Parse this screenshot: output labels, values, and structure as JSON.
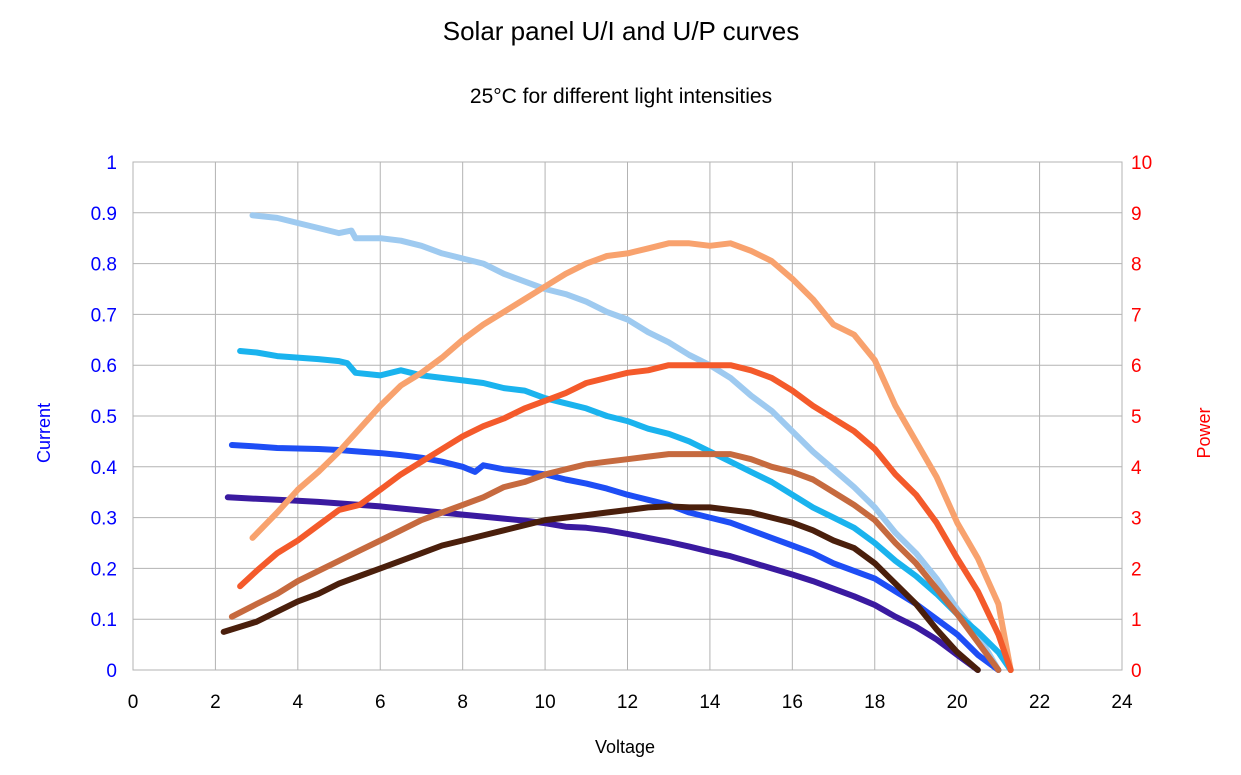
{
  "chart_data": {
    "type": "line",
    "title": "Solar panel U/I and U/P curves",
    "subtitle": "25°C for different light intensities",
    "xlabel": "Voltage",
    "ylabel": "Current",
    "y2label": "Power",
    "xlim": [
      0,
      24
    ],
    "ylim": [
      0,
      1
    ],
    "y2lim": [
      0,
      10
    ],
    "xticks": [
      "0",
      "2",
      "4",
      "6",
      "8",
      "10",
      "12",
      "14",
      "16",
      "18",
      "20",
      "22",
      "24"
    ],
    "yticks": [
      "0",
      "0.1",
      "0.2",
      "0.3",
      "0.4",
      "0.5",
      "0.6",
      "0.7",
      "0.8",
      "0.9",
      "1"
    ],
    "y2ticks": [
      "0",
      "1",
      "2",
      "3",
      "4",
      "5",
      "6",
      "7",
      "8",
      "9",
      "10"
    ],
    "grid": true,
    "legend": "none",
    "colors": {
      "ylabel": "#0000ff",
      "y2label": "#ff0000",
      "grid": "#b3b3b3"
    },
    "series": [
      {
        "axis": "current",
        "color": "#9ecaf0",
        "x": [
          2.9,
          3.5,
          4.0,
          4.5,
          5.0,
          5.3,
          5.4,
          6.0,
          6.5,
          7.0,
          7.5,
          8.0,
          8.5,
          9.0,
          9.5,
          10.0,
          10.5,
          11.0,
          11.5,
          12.0,
          12.5,
          13.0,
          13.5,
          14.0,
          14.5,
          15.0,
          15.5,
          16.0,
          16.5,
          17.0,
          17.5,
          18.0,
          18.5,
          19.0,
          19.5,
          20.0,
          20.5,
          21.0
        ],
        "y": [
          0.895,
          0.89,
          0.88,
          0.87,
          0.86,
          0.865,
          0.85,
          0.85,
          0.845,
          0.835,
          0.82,
          0.81,
          0.8,
          0.78,
          0.765,
          0.75,
          0.74,
          0.725,
          0.705,
          0.69,
          0.665,
          0.645,
          0.62,
          0.6,
          0.575,
          0.54,
          0.51,
          0.47,
          0.43,
          0.395,
          0.36,
          0.32,
          0.27,
          0.23,
          0.18,
          0.12,
          0.07,
          0.0
        ]
      },
      {
        "axis": "current",
        "color": "#1ab3ee",
        "x": [
          2.6,
          3.0,
          3.5,
          4.0,
          4.5,
          5.0,
          5.2,
          5.4,
          6.0,
          6.5,
          7.0,
          7.5,
          8.0,
          8.5,
          9.0,
          9.5,
          10.0,
          10.5,
          11.0,
          11.5,
          12.0,
          12.5,
          13.0,
          13.5,
          14.0,
          14.5,
          15.0,
          15.5,
          16.0,
          16.5,
          17.0,
          17.5,
          18.0,
          18.5,
          19.0,
          19.5,
          20.0,
          20.5,
          21.0,
          21.3
        ],
        "y": [
          0.628,
          0.625,
          0.618,
          0.615,
          0.612,
          0.608,
          0.604,
          0.585,
          0.58,
          0.59,
          0.58,
          0.575,
          0.57,
          0.565,
          0.555,
          0.55,
          0.535,
          0.525,
          0.515,
          0.5,
          0.49,
          0.475,
          0.465,
          0.45,
          0.43,
          0.41,
          0.39,
          0.37,
          0.345,
          0.32,
          0.3,
          0.28,
          0.25,
          0.215,
          0.185,
          0.15,
          0.11,
          0.075,
          0.035,
          0.0
        ]
      },
      {
        "axis": "current",
        "color": "#1e4ef5",
        "x": [
          2.4,
          3.0,
          3.5,
          4.0,
          4.5,
          5.0,
          5.5,
          6.0,
          6.5,
          7.0,
          7.5,
          8.0,
          8.3,
          8.5,
          9.0,
          9.5,
          10.0,
          10.5,
          11.0,
          11.5,
          12.0,
          12.5,
          13.0,
          13.5,
          14.0,
          14.5,
          15.0,
          15.5,
          16.0,
          16.5,
          17.0,
          17.5,
          18.0,
          18.5,
          19.0,
          19.5,
          20.0,
          20.5,
          21.0
        ],
        "y": [
          0.443,
          0.44,
          0.437,
          0.436,
          0.435,
          0.433,
          0.43,
          0.427,
          0.423,
          0.418,
          0.41,
          0.4,
          0.39,
          0.403,
          0.395,
          0.39,
          0.385,
          0.375,
          0.367,
          0.357,
          0.345,
          0.335,
          0.325,
          0.31,
          0.3,
          0.29,
          0.275,
          0.26,
          0.245,
          0.23,
          0.21,
          0.195,
          0.18,
          0.155,
          0.13,
          0.1,
          0.07,
          0.03,
          0.0
        ]
      },
      {
        "axis": "current",
        "color": "#3a1aa0",
        "x": [
          2.3,
          3.0,
          3.5,
          4.0,
          4.5,
          5.0,
          5.5,
          6.0,
          6.5,
          7.0,
          7.5,
          8.0,
          8.5,
          9.0,
          9.5,
          10.0,
          10.5,
          11.0,
          11.5,
          12.0,
          12.5,
          13.0,
          13.5,
          14.0,
          14.5,
          15.0,
          15.5,
          16.0,
          16.5,
          17.0,
          17.5,
          18.0,
          18.5,
          19.0,
          19.5,
          20.0,
          20.5
        ],
        "y": [
          0.34,
          0.337,
          0.335,
          0.333,
          0.331,
          0.328,
          0.325,
          0.322,
          0.318,
          0.314,
          0.31,
          0.306,
          0.302,
          0.298,
          0.294,
          0.289,
          0.282,
          0.28,
          0.275,
          0.268,
          0.26,
          0.252,
          0.243,
          0.233,
          0.224,
          0.212,
          0.2,
          0.188,
          0.175,
          0.16,
          0.145,
          0.128,
          0.105,
          0.085,
          0.06,
          0.03,
          0.0
        ]
      },
      {
        "axis": "power",
        "color": "#f8a26e",
        "x": [
          2.9,
          3.5,
          4.0,
          4.5,
          5.0,
          5.5,
          6.0,
          6.5,
          7.0,
          7.5,
          8.0,
          8.5,
          9.0,
          9.5,
          10.0,
          10.5,
          11.0,
          11.5,
          12.0,
          12.5,
          13.0,
          13.5,
          14.0,
          14.5,
          15.0,
          15.5,
          16.0,
          16.5,
          17.0,
          17.5,
          18.0,
          18.5,
          19.0,
          19.5,
          20.0,
          20.5,
          21.0,
          21.3
        ],
        "y": [
          2.6,
          3.1,
          3.55,
          3.9,
          4.3,
          4.75,
          5.2,
          5.6,
          5.85,
          6.15,
          6.5,
          6.8,
          7.05,
          7.3,
          7.55,
          7.8,
          8.0,
          8.15,
          8.2,
          8.3,
          8.4,
          8.4,
          8.35,
          8.4,
          8.25,
          8.05,
          7.7,
          7.3,
          6.8,
          6.6,
          6.1,
          5.2,
          4.5,
          3.8,
          2.9,
          2.2,
          1.3,
          0.0
        ]
      },
      {
        "axis": "power",
        "color": "#f45a2b",
        "x": [
          2.6,
          3.0,
          3.5,
          4.0,
          4.5,
          5.0,
          5.5,
          6.0,
          6.5,
          7.0,
          7.5,
          8.0,
          8.5,
          9.0,
          9.5,
          10.0,
          10.5,
          11.0,
          11.5,
          12.0,
          12.5,
          13.0,
          13.5,
          14.0,
          14.5,
          15.0,
          15.5,
          16.0,
          16.5,
          17.0,
          17.5,
          18.0,
          18.5,
          19.0,
          19.5,
          20.0,
          20.5,
          21.0,
          21.3
        ],
        "y": [
          1.65,
          1.95,
          2.3,
          2.55,
          2.85,
          3.15,
          3.25,
          3.55,
          3.85,
          4.1,
          4.35,
          4.6,
          4.8,
          4.95,
          5.15,
          5.3,
          5.45,
          5.65,
          5.75,
          5.85,
          5.9,
          6.0,
          6.0,
          6.0,
          6.0,
          5.9,
          5.75,
          5.5,
          5.2,
          4.95,
          4.7,
          4.35,
          3.85,
          3.45,
          2.9,
          2.2,
          1.55,
          0.7,
          0.0
        ]
      },
      {
        "axis": "power",
        "color": "#c66a3f",
        "x": [
          2.4,
          3.0,
          3.5,
          4.0,
          4.5,
          5.0,
          5.5,
          6.0,
          6.5,
          7.0,
          7.5,
          8.0,
          8.5,
          9.0,
          9.5,
          10.0,
          10.5,
          11.0,
          11.5,
          12.0,
          12.5,
          13.0,
          13.5,
          14.0,
          14.5,
          15.0,
          15.5,
          16.0,
          16.5,
          17.0,
          17.5,
          18.0,
          18.5,
          19.0,
          19.5,
          20.0,
          20.5,
          21.0
        ],
        "y": [
          1.05,
          1.3,
          1.5,
          1.75,
          1.95,
          2.15,
          2.35,
          2.55,
          2.75,
          2.95,
          3.1,
          3.25,
          3.4,
          3.6,
          3.7,
          3.85,
          3.95,
          4.05,
          4.1,
          4.15,
          4.2,
          4.25,
          4.25,
          4.25,
          4.25,
          4.15,
          4.0,
          3.9,
          3.75,
          3.5,
          3.25,
          2.95,
          2.5,
          2.1,
          1.6,
          1.1,
          0.55,
          0.0
        ]
      },
      {
        "axis": "power",
        "color": "#4a1f0c",
        "x": [
          2.2,
          3.0,
          3.5,
          4.0,
          4.5,
          5.0,
          5.5,
          6.0,
          6.5,
          7.0,
          7.5,
          8.0,
          8.5,
          9.0,
          9.5,
          10.0,
          10.5,
          11.0,
          11.5,
          12.0,
          12.5,
          13.0,
          13.5,
          14.0,
          14.5,
          15.0,
          15.5,
          16.0,
          16.5,
          17.0,
          17.5,
          18.0,
          18.5,
          19.0,
          19.5,
          20.0,
          20.5
        ],
        "y": [
          0.75,
          0.95,
          1.15,
          1.35,
          1.5,
          1.7,
          1.85,
          2.0,
          2.15,
          2.3,
          2.45,
          2.55,
          2.65,
          2.75,
          2.85,
          2.95,
          3.0,
          3.05,
          3.1,
          3.15,
          3.2,
          3.22,
          3.2,
          3.2,
          3.15,
          3.1,
          3.0,
          2.9,
          2.75,
          2.55,
          2.4,
          2.1,
          1.7,
          1.3,
          0.8,
          0.35,
          0.0
        ]
      }
    ]
  }
}
